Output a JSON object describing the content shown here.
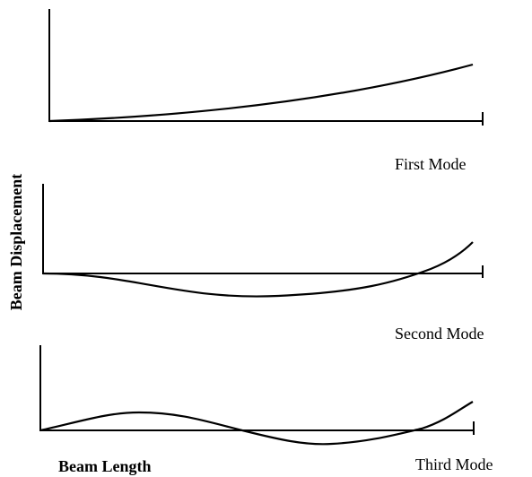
{
  "labels": {
    "y_axis": "Beam Displacement",
    "x_axis": "Beam Length"
  },
  "modes": [
    "First Mode",
    "Second Mode",
    "Third Mode"
  ]
}
